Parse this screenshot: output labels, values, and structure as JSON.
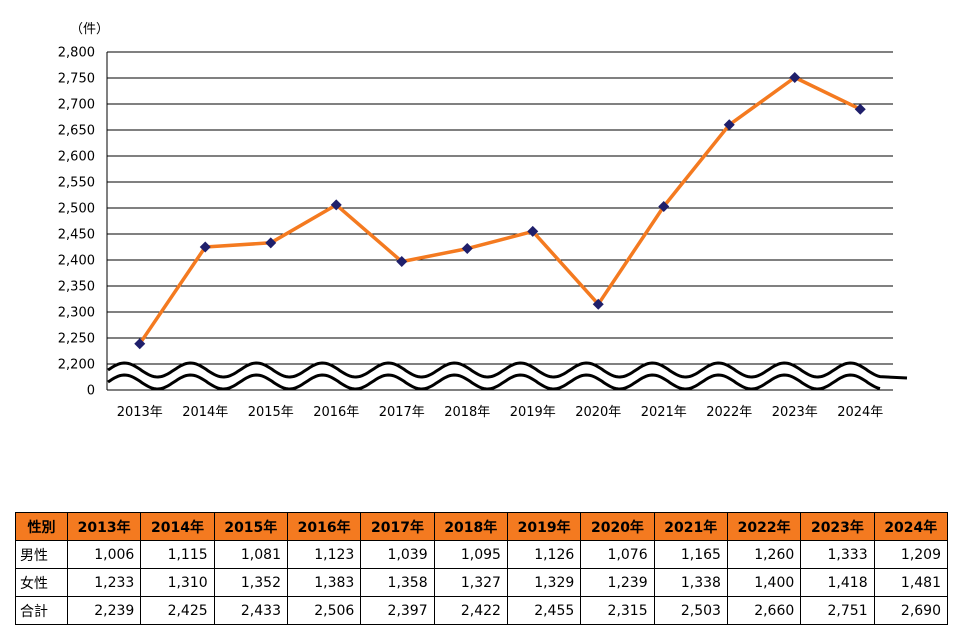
{
  "chart_data": {
    "type": "line",
    "unit_label": "（件）",
    "categories": [
      "2013年",
      "2014年",
      "2015年",
      "2016年",
      "2017年",
      "2018年",
      "2019年",
      "2020年",
      "2021年",
      "2022年",
      "2023年",
      "2024年"
    ],
    "series": [
      {
        "values": [
          2239,
          2425,
          2433,
          2506,
          2397,
          2422,
          2455,
          2315,
          2503,
          2660,
          2751,
          2690
        ]
      }
    ],
    "y_ticks": [
      "2,800",
      "2,750",
      "2,700",
      "2,650",
      "2,600",
      "2,550",
      "2,500",
      "2,450",
      "2,400",
      "2,350",
      "2,300",
      "2,250",
      "2,200",
      "0"
    ],
    "ylim": [
      2200,
      2800
    ],
    "axis_break": true,
    "grid": true,
    "colors": {
      "line": "#F47A20",
      "marker": "#1F1F6B",
      "grid": "#000000"
    }
  },
  "table": {
    "header_bg": "#F47A20",
    "corner": "性別",
    "columns": [
      "2013年",
      "2014年",
      "2015年",
      "2016年",
      "2017年",
      "2018年",
      "2019年",
      "2020年",
      "2021年",
      "2022年",
      "2023年",
      "2024年"
    ],
    "rows": [
      {
        "label": "男性",
        "values": [
          "1,006",
          "1,115",
          "1,081",
          "1,123",
          "1,039",
          "1,095",
          "1,126",
          "1,076",
          "1,165",
          "1,260",
          "1,333",
          "1,209"
        ]
      },
      {
        "label": "女性",
        "values": [
          "1,233",
          "1,310",
          "1,352",
          "1,383",
          "1,358",
          "1,327",
          "1,329",
          "1,239",
          "1,338",
          "1,400",
          "1,418",
          "1,481"
        ]
      },
      {
        "label": "合計",
        "values": [
          "2,239",
          "2,425",
          "2,433",
          "2,506",
          "2,397",
          "2,422",
          "2,455",
          "2,315",
          "2,503",
          "2,660",
          "2,751",
          "2,690"
        ]
      }
    ]
  }
}
